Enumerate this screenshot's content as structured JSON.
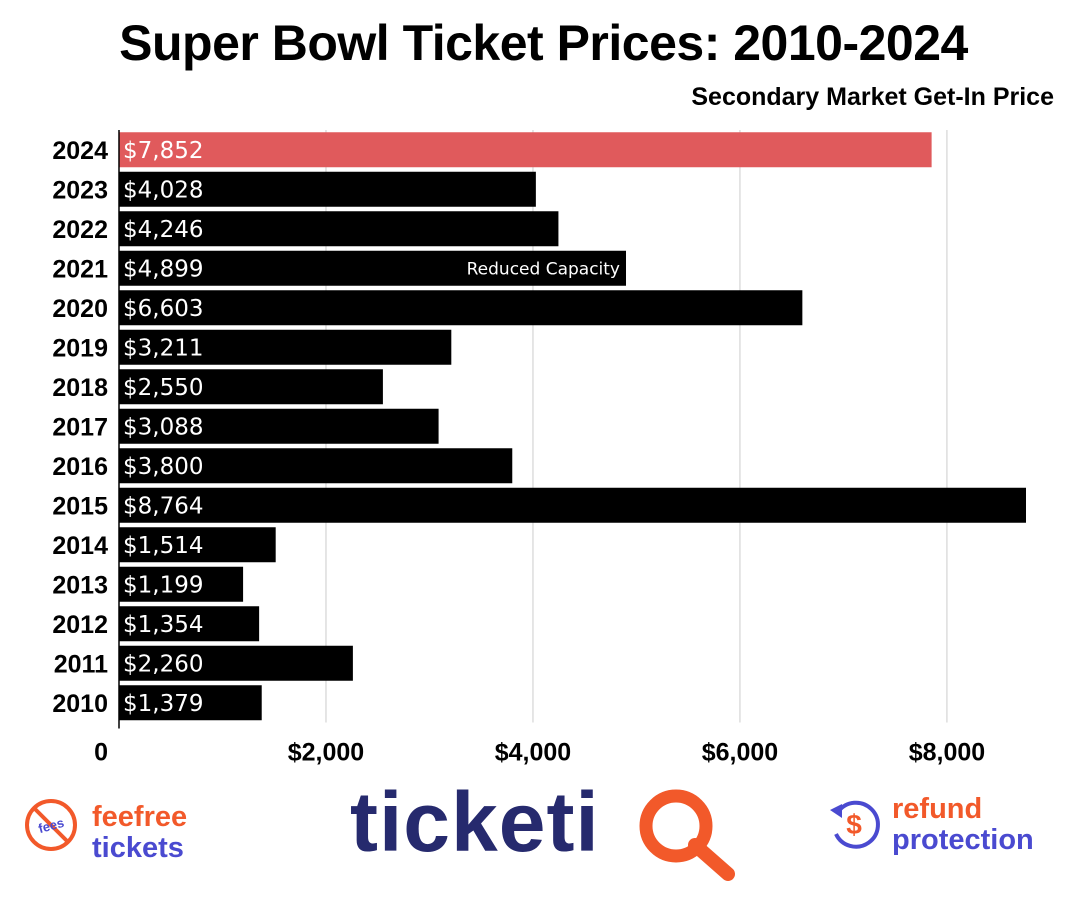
{
  "header": {
    "title": "Super Bowl Ticket Prices: 2010-2024",
    "subtitle": "Secondary Market Get-In Price"
  },
  "chart_data": {
    "type": "bar",
    "orientation": "horizontal",
    "title": "Super Bowl Ticket Prices: 2010-2024",
    "subtitle": "Secondary Market Get-In Price",
    "categories": [
      "2024",
      "2023",
      "2022",
      "2021",
      "2020",
      "2019",
      "2018",
      "2017",
      "2016",
      "2015",
      "2014",
      "2013",
      "2012",
      "2011",
      "2010"
    ],
    "values": [
      7852,
      4028,
      4246,
      4899,
      6603,
      3211,
      2550,
      3088,
      3800,
      8764,
      1514,
      1199,
      1354,
      2260,
      1379
    ],
    "value_labels": [
      "$7,852",
      "$4,028",
      "$4,246",
      "$4,899",
      "$6,603",
      "$3,211",
      "$2,550",
      "$3,088",
      "$3,800",
      "$8,764",
      "$1,514",
      "$1,199",
      "$1,354",
      "$2,260",
      "$1,379"
    ],
    "xlim": [
      0,
      9000
    ],
    "x_ticks": [
      0,
      2000,
      4000,
      6000,
      8000
    ],
    "x_tick_labels": [
      "0",
      "$2,000",
      "$4,000",
      "$6,000",
      "$8,000"
    ],
    "grid": true,
    "colors": {
      "highlight": "#e05a5c",
      "default": "#000000",
      "grid": "#cccccc"
    },
    "highlight_category": "2024",
    "annotations": [
      {
        "category": "2021",
        "text": "Reduced Capacity"
      }
    ]
  },
  "footer": {
    "fee_logo": {
      "icon": "no-fees-icon",
      "circle_text": "fees",
      "line1": "feefree",
      "line2": "tickets"
    },
    "brand_logo": {
      "text": "ticketi",
      "icon": "q-magnifier-icon"
    },
    "refund_logo": {
      "icon": "refund-dollar-icon",
      "line1": "refund",
      "line2": "protection"
    },
    "colors": {
      "orange": "#f2592a",
      "purple": "#4a4ad0",
      "navy": "#262a6e"
    }
  }
}
